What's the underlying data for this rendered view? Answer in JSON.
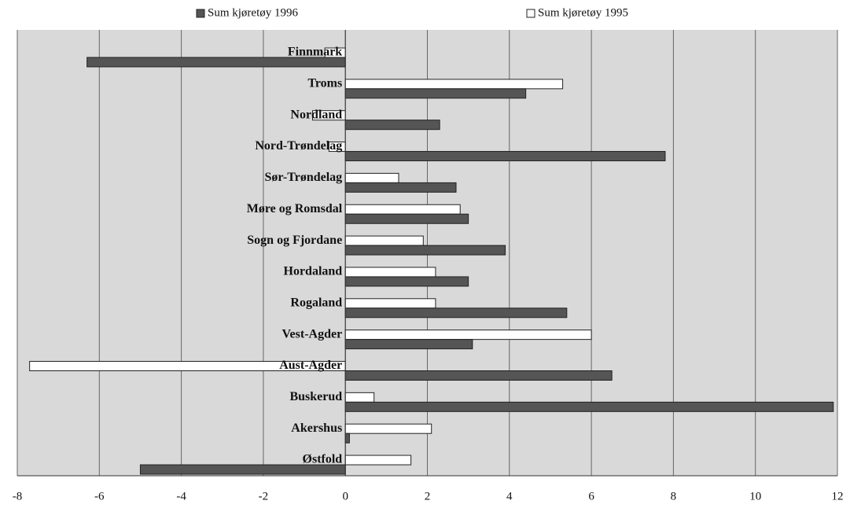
{
  "chart_data": {
    "type": "hbar",
    "categories": [
      "Finnmark",
      "Troms",
      "Nordland",
      "Nord-Trøndelag",
      "Sør-Trøndelag",
      "Møre og Romsdal",
      "Sogn og Fjordane",
      "Hordaland",
      "Rogaland",
      "Vest-Agder",
      "Aust-Agder",
      "Buskerud",
      "Akershus",
      "Østfold"
    ],
    "series": [
      {
        "name": "Sum kjøretøy 1996",
        "color": "#555555",
        "values": [
          -6.3,
          4.4,
          2.3,
          7.8,
          2.7,
          3.0,
          3.9,
          3.0,
          5.4,
          3.1,
          6.5,
          11.9,
          0.1,
          -5.0
        ]
      },
      {
        "name": "Sum kjøretøy 1995",
        "color": "#ffffff",
        "values": [
          -0.5,
          5.3,
          -0.8,
          -0.4,
          1.3,
          2.8,
          1.9,
          2.2,
          2.2,
          6.0,
          -7.7,
          0.7,
          2.1,
          1.6
        ]
      }
    ],
    "xlim": [
      -8,
      12
    ],
    "xticks": [
      -8,
      -6,
      -4,
      -2,
      0,
      2,
      4,
      6,
      8,
      10,
      12
    ],
    "grid": true
  }
}
